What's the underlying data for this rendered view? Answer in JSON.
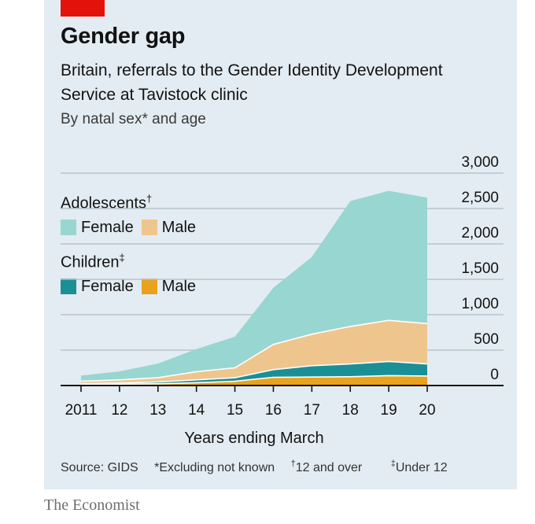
{
  "header": {
    "title": "Gender gap",
    "subtitle": "Britain, referrals to the Gender Identity Development Service at Tavistock clinic",
    "note": "By natal sex* and age"
  },
  "legend": {
    "adolescents_title": "Adolescents",
    "adolescents_mark": "†",
    "children_title": "Children",
    "children_mark": "‡",
    "female": "Female",
    "male": "Male"
  },
  "footer": {
    "source": "Source: GIDS",
    "note1": "*Excluding not known",
    "note2_mark": "†",
    "note2": "12 and over",
    "note3_mark": "‡",
    "note3": "Under 12",
    "brand": "The Economist"
  },
  "colors": {
    "brand_red": "#e3120b",
    "adolescent_female": "#98d6d1",
    "adolescent_male": "#efc58e",
    "child_female": "#1b8f96",
    "child_male": "#e9a21d"
  },
  "chart_data": {
    "type": "area",
    "stacked": true,
    "title": "Gender gap",
    "xlabel": "Years ending March",
    "ylabel": "",
    "x": [
      2011,
      2012,
      2013,
      2014,
      2015,
      2016,
      2017,
      2018,
      2019,
      2020
    ],
    "x_tick_labels": [
      "2011",
      "12",
      "13",
      "14",
      "15",
      "16",
      "17",
      "18",
      "19",
      "20"
    ],
    "ylim": [
      0,
      3000
    ],
    "y_ticks": [
      0,
      500,
      1000,
      1500,
      2000,
      2500,
      3000
    ],
    "y_tick_labels": [
      "0",
      "500",
      "1,000",
      "1,500",
      "2,000",
      "2,500",
      "3,000"
    ],
    "y_axis_side": "right",
    "grid": true,
    "series": [
      {
        "name": "Children, Male",
        "values": [
          15,
          20,
          25,
          40,
          60,
          115,
          120,
          125,
          140,
          135
        ]
      },
      {
        "name": "Children, Female",
        "values": [
          10,
          15,
          25,
          40,
          50,
          110,
          160,
          180,
          200,
          170
        ]
      },
      {
        "name": "Adolescents, Male",
        "values": [
          35,
          45,
          60,
          115,
          140,
          355,
          445,
          530,
          580,
          570
        ]
      },
      {
        "name": "Adolescents, Female",
        "values": [
          80,
          120,
          200,
          320,
          440,
          800,
          1090,
          1770,
          1830,
          1780
        ]
      }
    ]
  }
}
